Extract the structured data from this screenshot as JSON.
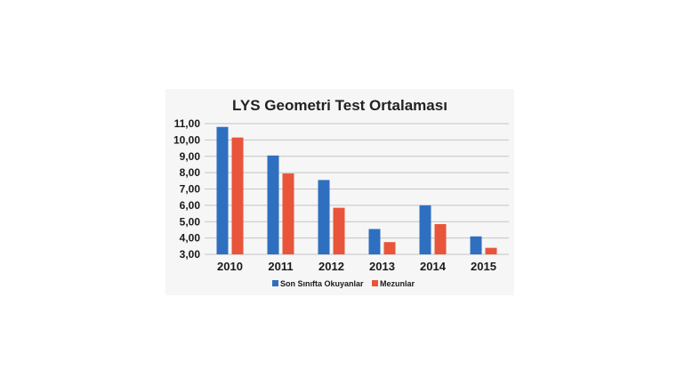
{
  "chart_data": {
    "type": "bar",
    "title": "LYS Geometri Test Ortalaması",
    "xlabel": "",
    "ylabel": "",
    "categories": [
      "2010",
      "2011",
      "2012",
      "2013",
      "2014",
      "2015"
    ],
    "series": [
      {
        "name": "Son Sınıfta Okuyanlar",
        "values": [
          10.8,
          9.05,
          7.55,
          4.55,
          6.0,
          4.1
        ]
      },
      {
        "name": "Mezunlar",
        "values": [
          10.15,
          7.95,
          5.85,
          3.75,
          4.85,
          3.4
        ]
      }
    ],
    "ylim": [
      3,
      11
    ],
    "yticks": [
      "3,00",
      "4,00",
      "5,00",
      "6,00",
      "7,00",
      "8,00",
      "9,00",
      "10,00",
      "11,00"
    ],
    "grid": true,
    "legend_position": "bottom",
    "colors": {
      "series": [
        "#2f6fc0",
        "#e8553a"
      ],
      "grid": "#c4c4c4",
      "panel": "#f6f6f6"
    }
  }
}
